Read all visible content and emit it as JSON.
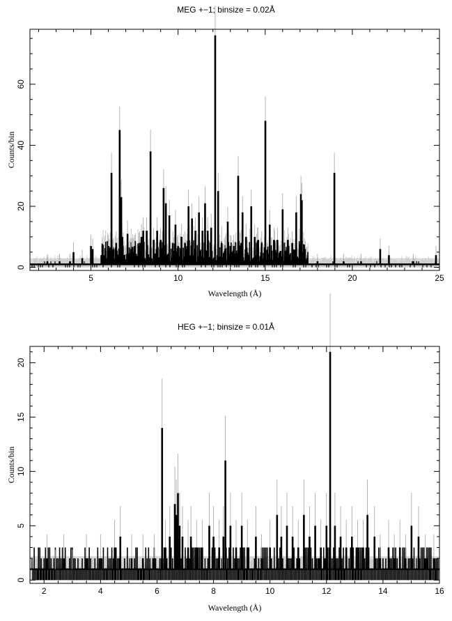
{
  "chart_data": [
    {
      "type": "line",
      "title": "MEG +−1; binsize = 0.02Å",
      "xlabel": "Wavelength (Å)",
      "ylabel": "Counts/bin",
      "xlim": [
        1.5,
        25
      ],
      "ylim": [
        -1,
        78
      ],
      "x_ticks": [
        5,
        10,
        15,
        20,
        25
      ],
      "y_ticks": [
        0,
        20,
        40,
        60
      ],
      "series": [
        {
          "style": "histogram-with-errorbars",
          "baseline": 1,
          "x": [
            2.5,
            3.2,
            3.8,
            4.0,
            4.5,
            5.0,
            5.1,
            5.6,
            5.9,
            6.0,
            6.18,
            6.3,
            6.45,
            6.65,
            6.74,
            6.8,
            7.1,
            7.3,
            7.5,
            7.8,
            7.9,
            8.0,
            8.2,
            8.42,
            8.6,
            8.8,
            9.0,
            9.17,
            9.3,
            9.5,
            9.7,
            9.85,
            10.0,
            10.2,
            10.4,
            10.6,
            10.8,
            11.0,
            11.2,
            11.4,
            11.55,
            11.7,
            11.9,
            12.13,
            12.3,
            12.5,
            12.7,
            12.85,
            13.0,
            13.2,
            13.45,
            13.7,
            13.9,
            14.2,
            14.4,
            14.6,
            14.8,
            15.01,
            15.26,
            15.5,
            15.7,
            16.0,
            16.3,
            16.55,
            16.78,
            17.05,
            17.1,
            17.4,
            18.0,
            18.97,
            19.5,
            20.5,
            21.6,
            22.1,
            23.5,
            24.8
          ],
          "y": [
            2,
            2,
            2,
            5,
            3,
            7,
            6,
            4,
            3,
            7,
            31,
            6,
            8,
            45,
            23,
            10,
            11,
            6,
            7,
            8,
            10,
            12,
            12,
            38,
            9,
            12,
            9,
            26,
            21,
            17,
            8,
            14,
            7,
            10,
            8,
            20,
            16,
            12,
            18,
            12,
            21,
            12,
            13,
            76,
            25,
            8,
            6,
            15,
            7,
            7,
            30,
            18,
            10,
            20,
            10,
            9,
            8,
            48,
            14,
            9,
            9,
            19,
            9,
            8,
            18,
            24,
            22,
            3,
            2,
            31,
            2,
            2,
            6,
            4,
            2,
            4
          ]
        }
      ]
    },
    {
      "type": "line",
      "title": "HEG +−1; binsize = 0.01Å",
      "xlabel": "Wavelength (Å)",
      "ylabel": "Counts/bin",
      "xlim": [
        1.5,
        16
      ],
      "ylim": [
        -0.3,
        21.5
      ],
      "x_ticks": [
        2,
        4,
        6,
        8,
        10,
        12,
        14,
        16
      ],
      "y_ticks": [
        0,
        5,
        10,
        15,
        20
      ],
      "series": [
        {
          "style": "histogram-with-errorbars",
          "baseline": 1,
          "x": [
            2.1,
            2.4,
            2.7,
            3.0,
            3.5,
            4.0,
            4.5,
            4.7,
            5.1,
            5.5,
            5.9,
            6.18,
            6.3,
            6.45,
            6.63,
            6.68,
            6.74,
            6.8,
            6.9,
            7.1,
            7.2,
            7.4,
            7.6,
            7.85,
            8.0,
            8.2,
            8.35,
            8.42,
            8.6,
            8.8,
            9.0,
            9.2,
            9.5,
            9.7,
            10.0,
            10.25,
            10.4,
            10.6,
            10.8,
            11.0,
            11.2,
            11.4,
            11.6,
            11.8,
            12.0,
            12.13,
            12.3,
            12.5,
            12.7,
            12.9,
            13.1,
            13.3,
            13.45,
            13.7,
            13.9,
            14.2,
            14.4,
            14.6,
            14.8,
            15.01,
            15.26,
            15.5,
            15.8
          ],
          "y": [
            2,
            1,
            2,
            1,
            2,
            2,
            3,
            4,
            2,
            2,
            2,
            14,
            3,
            4,
            7,
            6,
            8,
            5,
            4,
            3,
            4,
            3,
            3,
            5,
            4,
            3,
            4,
            11,
            5,
            3,
            5,
            3,
            4,
            2,
            3,
            6,
            4,
            5,
            4,
            3,
            6,
            4,
            5,
            3,
            5,
            21,
            5,
            4,
            3,
            4,
            3,
            3,
            6,
            4,
            2,
            3,
            2,
            3,
            2,
            5,
            4,
            2,
            2
          ]
        }
      ]
    }
  ]
}
